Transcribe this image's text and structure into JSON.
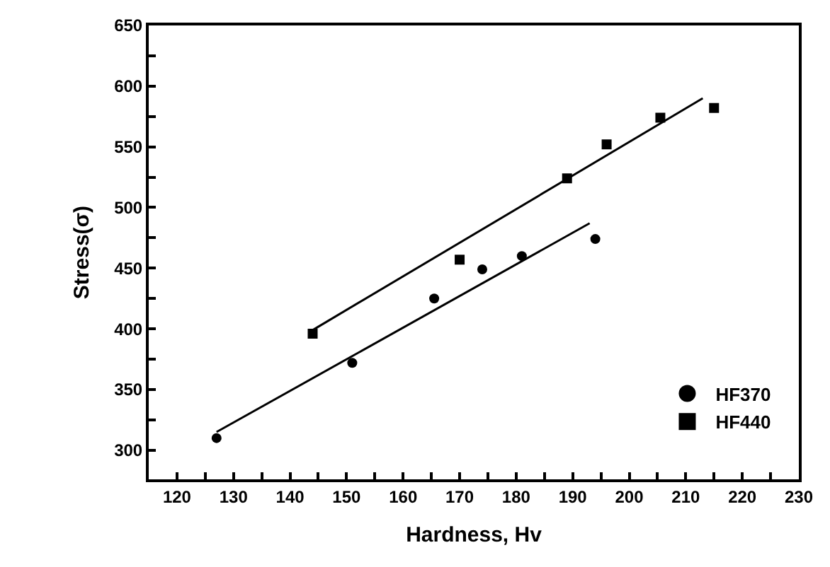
{
  "chart_data": {
    "type": "scatter",
    "xlabel": "Hardness, Hv",
    "ylabel": "Stress(σ)",
    "xlim": [
      115,
      230
    ],
    "ylim": [
      276,
      650
    ],
    "xticks": [
      {
        "value": 115,
        "label": null
      },
      120,
      {
        "value": 125,
        "label": null
      },
      130,
      {
        "value": 135,
        "label": null
      },
      140,
      {
        "value": 145,
        "label": null
      },
      150,
      {
        "value": 155,
        "label": null
      },
      160,
      {
        "value": 165,
        "label": null
      },
      170,
      {
        "value": 175,
        "label": null
      },
      180,
      {
        "value": 185,
        "label": null
      },
      190,
      {
        "value": 195,
        "label": null
      },
      200,
      {
        "value": 205,
        "label": null
      },
      210,
      {
        "value": 215,
        "label": null
      },
      220,
      {
        "value": 225,
        "label": null
      },
      230
    ],
    "yticks": [
      300,
      {
        "value": 325,
        "label": null
      },
      350,
      {
        "value": 375,
        "label": null
      },
      400,
      {
        "value": 425,
        "label": null
      },
      450,
      {
        "value": 475,
        "label": null
      },
      500,
      {
        "value": 525,
        "label": null
      },
      550,
      {
        "value": 575,
        "label": null
      },
      600,
      {
        "value": 625,
        "label": null
      },
      650
    ],
    "legend": "bottom right",
    "series": [
      {
        "name": "HF370",
        "color": "#000000",
        "marker": "circle",
        "x": [
          127,
          151,
          165.5,
          174,
          181,
          194
        ],
        "values": [
          310,
          372,
          425,
          449,
          460,
          474
        ]
      },
      {
        "name": "HF440",
        "color": "#000000",
        "marker": "square",
        "x": [
          144,
          170,
          189,
          196,
          205.5,
          215
        ],
        "values": [
          396,
          457,
          524,
          552,
          574,
          582
        ]
      },
      {
        "type": "line",
        "color": "#000000",
        "marker": "none",
        "line_style": "solid",
        "x": [
          127,
          193
        ],
        "values": [
          315,
          487
        ]
      },
      {
        "type": "line",
        "color": "#000000",
        "marker": "none",
        "line_style": "solid",
        "x": [
          144,
          213
        ],
        "values": [
          399,
          590
        ]
      }
    ]
  }
}
